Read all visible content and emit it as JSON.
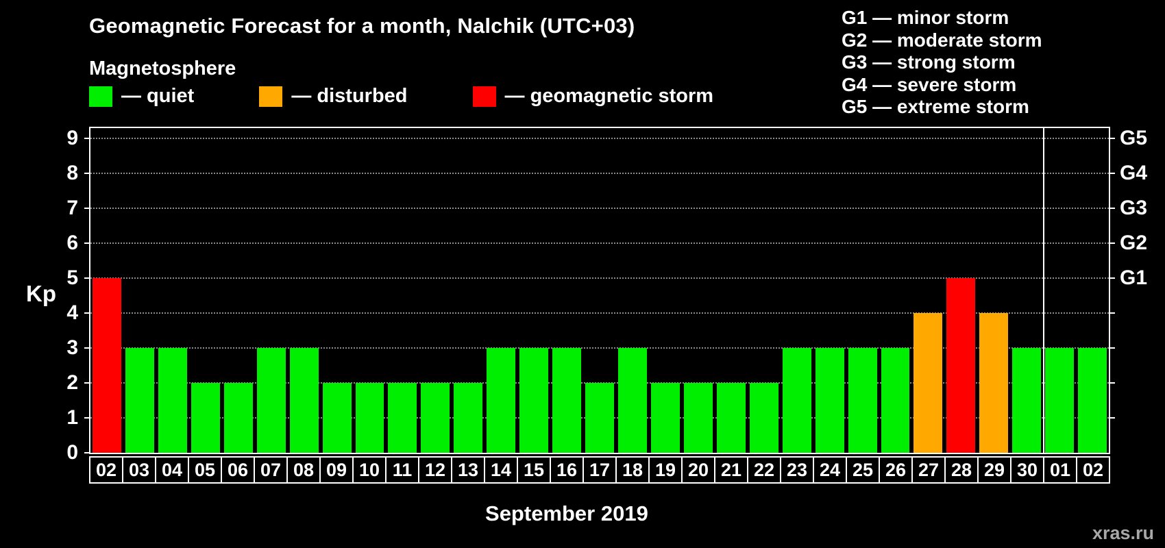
{
  "header": {
    "title": "Geomagnetic Forecast for a month, Nalchik (UTC+03)",
    "subtitle": "Magnetosphere"
  },
  "legend": {
    "items": [
      {
        "key": "quiet",
        "label": "— quiet",
        "color": "#00ee00"
      },
      {
        "key": "disturbed",
        "label": "— disturbed",
        "color": "#ffa800"
      },
      {
        "key": "storm",
        "label": "— geomagnetic storm",
        "color": "#ff0000"
      }
    ]
  },
  "storm_scale_legend": {
    "items": [
      "G1 — minor storm",
      "G2 — moderate storm",
      "G3 — strong storm",
      "G4 — severe storm",
      "G5 — extreme storm"
    ]
  },
  "chart_data": {
    "type": "bar",
    "title": "Geomagnetic Forecast for a month, Nalchik (UTC+03)",
    "xlabel": "September 2019",
    "ylabel": "Kp",
    "ylim": [
      0,
      9.3
    ],
    "yticks": [
      0,
      1,
      2,
      3,
      4,
      5,
      6,
      7,
      8,
      9
    ],
    "grid": "dotted horizontal lines at each Kp integer",
    "right_axis_labels": [
      {
        "label": "G1",
        "value": 5
      },
      {
        "label": "G2",
        "value": 6
      },
      {
        "label": "G3",
        "value": 7
      },
      {
        "label": "G4",
        "value": 8
      },
      {
        "label": "G5",
        "value": 9
      }
    ],
    "categories": [
      "02",
      "03",
      "04",
      "05",
      "06",
      "07",
      "08",
      "09",
      "10",
      "11",
      "12",
      "13",
      "14",
      "15",
      "16",
      "17",
      "18",
      "19",
      "20",
      "21",
      "22",
      "23",
      "24",
      "25",
      "26",
      "27",
      "28",
      "29",
      "30",
      "01",
      "02"
    ],
    "values": [
      5,
      3,
      3,
      2,
      2,
      3,
      3,
      2,
      2,
      2,
      2,
      2,
      3,
      3,
      3,
      2,
      3,
      2,
      2,
      2,
      2,
      3,
      3,
      3,
      3,
      4,
      5,
      4,
      3,
      3,
      3
    ],
    "statuses": [
      "storm",
      "quiet",
      "quiet",
      "quiet",
      "quiet",
      "quiet",
      "quiet",
      "quiet",
      "quiet",
      "quiet",
      "quiet",
      "quiet",
      "quiet",
      "quiet",
      "quiet",
      "quiet",
      "quiet",
      "quiet",
      "quiet",
      "quiet",
      "quiet",
      "quiet",
      "quiet",
      "quiet",
      "quiet",
      "disturbed",
      "storm",
      "disturbed",
      "quiet",
      "quiet",
      "quiet"
    ],
    "month_boundary_index": 29
  },
  "footer": {
    "watermark": "xras.ru"
  }
}
